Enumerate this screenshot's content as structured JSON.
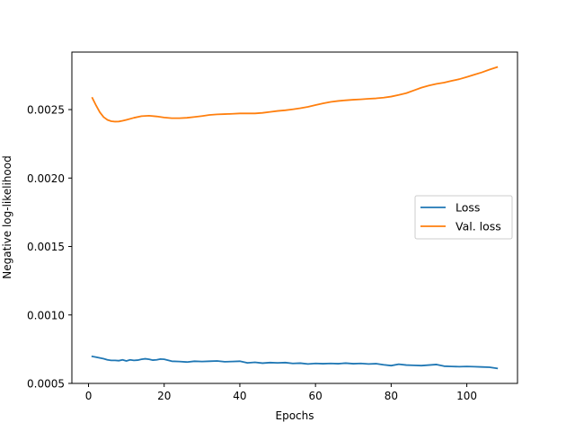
{
  "chart_data": {
    "type": "line",
    "title": "",
    "xlabel": "Epochs",
    "ylabel": "Negative log-likelihood",
    "xlim": [
      -4.4,
      113.4
    ],
    "ylim": [
      0.0005,
      0.00292
    ],
    "xticks": [
      0,
      20,
      40,
      60,
      80,
      100
    ],
    "xtick_labels": [
      "0",
      "20",
      "40",
      "60",
      "80",
      "100"
    ],
    "yticks": [
      0.0005,
      0.001,
      0.0015,
      0.002,
      0.0025
    ],
    "ytick_labels": [
      "0.0005",
      "0.0010",
      "0.0015",
      "0.0020",
      "0.0025"
    ],
    "grid": false,
    "legend": {
      "position": "center-right"
    },
    "series": [
      {
        "name": "Loss",
        "color": "#1f77b4",
        "x": [
          1,
          2,
          3,
          4,
          5,
          6,
          7,
          8,
          9,
          10,
          11,
          12,
          13,
          14,
          15,
          16,
          17,
          18,
          19,
          20,
          22,
          24,
          26,
          28,
          30,
          32,
          34,
          36,
          38,
          40,
          42,
          44,
          46,
          48,
          50,
          52,
          54,
          56,
          58,
          60,
          62,
          64,
          66,
          68,
          70,
          72,
          74,
          76,
          78,
          80,
          82,
          84,
          86,
          88,
          90,
          92,
          94,
          96,
          98,
          100,
          102,
          104,
          106,
          108
        ],
        "y": [
          0.000697,
          0.000692,
          0.000686,
          0.00068,
          0.000672,
          0.000668,
          0.000668,
          0.000666,
          0.000672,
          0.000664,
          0.000672,
          0.000668,
          0.00067,
          0.000676,
          0.00068,
          0.000676,
          0.00067,
          0.000672,
          0.000678,
          0.000676,
          0.000662,
          0.00066,
          0.000656,
          0.000662,
          0.00066,
          0.000662,
          0.000664,
          0.000658,
          0.00066,
          0.000662,
          0.00065,
          0.000654,
          0.000648,
          0.000652,
          0.00065,
          0.000652,
          0.000646,
          0.000648,
          0.000642,
          0.000646,
          0.000644,
          0.000646,
          0.000644,
          0.000648,
          0.000644,
          0.000646,
          0.000642,
          0.000644,
          0.000636,
          0.00063,
          0.00064,
          0.000634,
          0.000632,
          0.00063,
          0.000634,
          0.000638,
          0.000626,
          0.000624,
          0.000622,
          0.000624,
          0.000622,
          0.00062,
          0.000618,
          0.00061
        ]
      },
      {
        "name": "Val. loss",
        "color": "#ff7f0e",
        "x": [
          1,
          2,
          3,
          4,
          5,
          6,
          7,
          8,
          9,
          10,
          12,
          14,
          16,
          18,
          20,
          22,
          24,
          26,
          28,
          30,
          32,
          34,
          36,
          38,
          40,
          42,
          44,
          46,
          48,
          50,
          52,
          54,
          56,
          58,
          60,
          62,
          64,
          66,
          68,
          70,
          72,
          74,
          76,
          78,
          80,
          82,
          84,
          86,
          88,
          90,
          92,
          94,
          96,
          98,
          100,
          102,
          104,
          106,
          108
        ],
        "y": [
          0.002585,
          0.00253,
          0.00248,
          0.002445,
          0.002425,
          0.002415,
          0.002412,
          0.002413,
          0.002418,
          0.002425,
          0.00244,
          0.002452,
          0.002455,
          0.00245,
          0.002442,
          0.002437,
          0.002437,
          0.00244,
          0.002446,
          0.002453,
          0.002461,
          0.002465,
          0.002467,
          0.002469,
          0.002472,
          0.002472,
          0.002472,
          0.002476,
          0.002483,
          0.00249,
          0.002495,
          0.002502,
          0.00251,
          0.00252,
          0.002533,
          0.002545,
          0.002556,
          0.002563,
          0.002568,
          0.002572,
          0.002575,
          0.002579,
          0.002582,
          0.002587,
          0.002595,
          0.002607,
          0.00262,
          0.00264,
          0.00266,
          0.002676,
          0.002688,
          0.002697,
          0.00271,
          0.002722,
          0.002738,
          0.002755,
          0.002772,
          0.002792,
          0.00281
        ]
      }
    ]
  }
}
